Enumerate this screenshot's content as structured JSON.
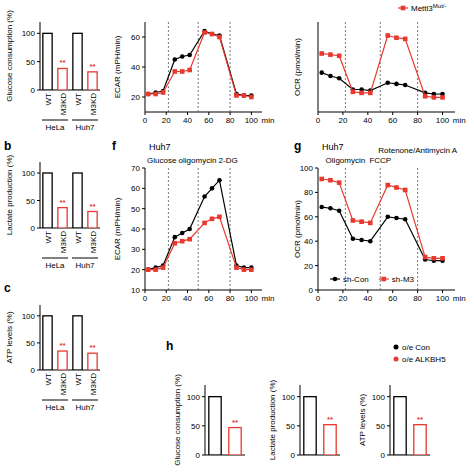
{
  "chart_data": [
    {
      "type": "bar",
      "y_label": "Glucose consumption (%)",
      "categories": [
        "WT",
        "M3KD",
        "WT",
        "M3KD"
      ],
      "groups": [
        "HeLa",
        "Huh7"
      ],
      "values": [
        100,
        38,
        100,
        32
      ],
      "colors": [
        "#000000",
        "#e8392e",
        "#000000",
        "#e8392e"
      ],
      "annotations": [
        null,
        "**",
        null,
        "**"
      ],
      "ylim": [
        0,
        120
      ],
      "yticks": [
        0,
        50,
        100
      ]
    },
    {
      "type": "bar",
      "label": "b",
      "y_label": "Lactate production (%)",
      "categories": [
        "WT",
        "M3KD",
        "WT",
        "M3KD"
      ],
      "groups": [
        "HeLa",
        "Huh7"
      ],
      "values": [
        100,
        37,
        100,
        30
      ],
      "colors": [
        "#000000",
        "#e8392e",
        "#000000",
        "#e8392e"
      ],
      "annotations": [
        null,
        "**",
        null,
        "**"
      ],
      "ylim": [
        0,
        120
      ],
      "yticks": [
        0,
        50,
        100
      ]
    },
    {
      "type": "bar",
      "label": "c",
      "y_label": "ATP levels (%)",
      "categories": [
        "WT",
        "M3KD",
        "WT",
        "M3KD"
      ],
      "groups": [
        "HeLa",
        "Huh7"
      ],
      "values": [
        100,
        35,
        100,
        31
      ],
      "colors": [
        "#000000",
        "#e8392e",
        "#000000",
        "#e8392e"
      ],
      "annotations": [
        null,
        "**",
        null,
        "**"
      ],
      "ylim": [
        0,
        120
      ],
      "yticks": [
        0,
        50,
        100
      ]
    },
    {
      "type": "line",
      "y_label": "ECAR (mPH/min)",
      "x_label": "min",
      "x": [
        3,
        10,
        17,
        28,
        35,
        42,
        56,
        63,
        70,
        86,
        93,
        100
      ],
      "xlim": [
        0,
        110
      ],
      "xticks": [
        0,
        20,
        40,
        60,
        80,
        100
      ],
      "ylim": [
        10,
        70
      ],
      "yticks": [
        20,
        40,
        60
      ],
      "injections": [
        22,
        50,
        80
      ],
      "series": [
        {
          "color": "#000000",
          "marker": "circle",
          "values": [
            22,
            23,
            24,
            45,
            47,
            48,
            64,
            62,
            61,
            22,
            21,
            21
          ]
        },
        {
          "color": "#e8392e",
          "marker": "square",
          "values": [
            22,
            22,
            23,
            37,
            37,
            38,
            63,
            62,
            60,
            21,
            21,
            20
          ]
        }
      ]
    },
    {
      "type": "line",
      "y_label": "OCR (pmol/min)",
      "x_label": "min",
      "x": [
        3,
        10,
        17,
        28,
        35,
        42,
        56,
        63,
        70,
        86,
        93,
        100
      ],
      "xlim": [
        0,
        110
      ],
      "xticks": [
        0,
        20,
        40,
        60,
        80,
        100
      ],
      "ylim": [
        20,
        100
      ],
      "tick_labels": "x",
      "injections": [
        22,
        50,
        80
      ],
      "legend": "top-right",
      "series": [
        {
          "color": "#000000",
          "marker": "circle",
          "values": [
            55,
            52,
            50,
            40,
            40,
            39,
            46,
            45,
            44,
            37,
            36,
            36
          ]
        },
        {
          "name": "Mettl3",
          "superscript": "Mut/-",
          "color": "#e8392e",
          "marker": "square",
          "values": [
            72,
            71,
            70,
            38,
            37,
            37,
            88,
            86,
            85,
            34,
            33,
            33
          ]
        }
      ]
    },
    {
      "type": "line",
      "label": "f",
      "title": "Huh7",
      "annotation": "Glucose oligomycin 2-DG",
      "y_label": "ECAR (mPH/min)",
      "x_label": "min",
      "x": [
        3,
        10,
        17,
        28,
        35,
        42,
        56,
        63,
        70,
        86,
        93,
        100
      ],
      "xlim": [
        0,
        110
      ],
      "xticks": [
        0,
        20,
        40,
        60,
        80,
        100
      ],
      "ylim": [
        10,
        70
      ],
      "yticks": [
        10,
        20,
        30,
        40,
        50,
        60,
        70
      ],
      "injections": [
        22,
        50,
        80
      ],
      "series": [
        {
          "color": "#000000",
          "marker": "circle",
          "values": [
            20,
            21,
            22,
            36,
            38,
            40,
            56,
            60,
            64,
            22,
            21,
            21
          ]
        },
        {
          "color": "#e8392e",
          "marker": "square",
          "values": [
            20,
            20,
            21,
            33,
            34,
            35,
            43,
            45,
            46,
            21,
            20,
            20
          ]
        }
      ]
    },
    {
      "type": "line",
      "label": "g",
      "title": "Huh7",
      "y_label": "OCR (pmol/min)",
      "x_label": "min",
      "x": [
        3,
        10,
        17,
        28,
        35,
        42,
        56,
        63,
        70,
        86,
        93,
        100
      ],
      "xlim": [
        0,
        110
      ],
      "xticks": [
        0,
        20,
        40,
        60,
        80,
        100
      ],
      "ylim": [
        0,
        100
      ],
      "yticks": [
        0,
        20,
        40,
        60,
        80,
        100
      ],
      "injections": [
        {
          "x": 22,
          "label": "Oligomycin"
        },
        {
          "x": 50,
          "label": "FCCP"
        },
        {
          "x": 80,
          "label": "Rotenone/Antimycin A"
        }
      ],
      "legend": "bottom-left",
      "series": [
        {
          "name": "sh-Con",
          "color": "#000000",
          "marker": "circle",
          "values": [
            68,
            67,
            65,
            42,
            41,
            40,
            60,
            59,
            58,
            25,
            24,
            24
          ]
        },
        {
          "name": "sh-M3",
          "color": "#e8392e",
          "marker": "square",
          "values": [
            91,
            90,
            88,
            57,
            56,
            55,
            86,
            84,
            82,
            27,
            26,
            26
          ]
        }
      ]
    },
    {
      "type": "bar",
      "label": "h",
      "y_label": "Glucose consumption (%)",
      "categories": [
        null,
        null
      ],
      "values": [
        100,
        47
      ],
      "colors": [
        "#000000",
        "#e8392e"
      ],
      "annotations": [
        null,
        "**"
      ],
      "ylim": [
        0,
        120
      ],
      "yticks": [
        0,
        50,
        100
      ]
    },
    {
      "type": "bar",
      "y_label": "Lactate production (%)",
      "categories": [
        null,
        null
      ],
      "values": [
        100,
        52
      ],
      "colors": [
        "#000000",
        "#e8392e"
      ],
      "annotations": [
        null,
        "**"
      ],
      "ylim": [
        0,
        120
      ],
      "yticks": [
        0,
        50,
        100
      ]
    },
    {
      "type": "bar",
      "y_label": "ATP levels (%)",
      "legend": "top-right",
      "annotations": [
        null,
        "**"
      ],
      "ylim": [
        0,
        120
      ],
      "yticks": [
        0,
        50,
        100
      ],
      "series": [
        {
          "name": "o/e Con",
          "color": "#000000",
          "values": [
            100
          ]
        },
        {
          "name": "o/e ALKBH5",
          "color": "#e8392e",
          "values": [
            52
          ]
        }
      ]
    }
  ]
}
